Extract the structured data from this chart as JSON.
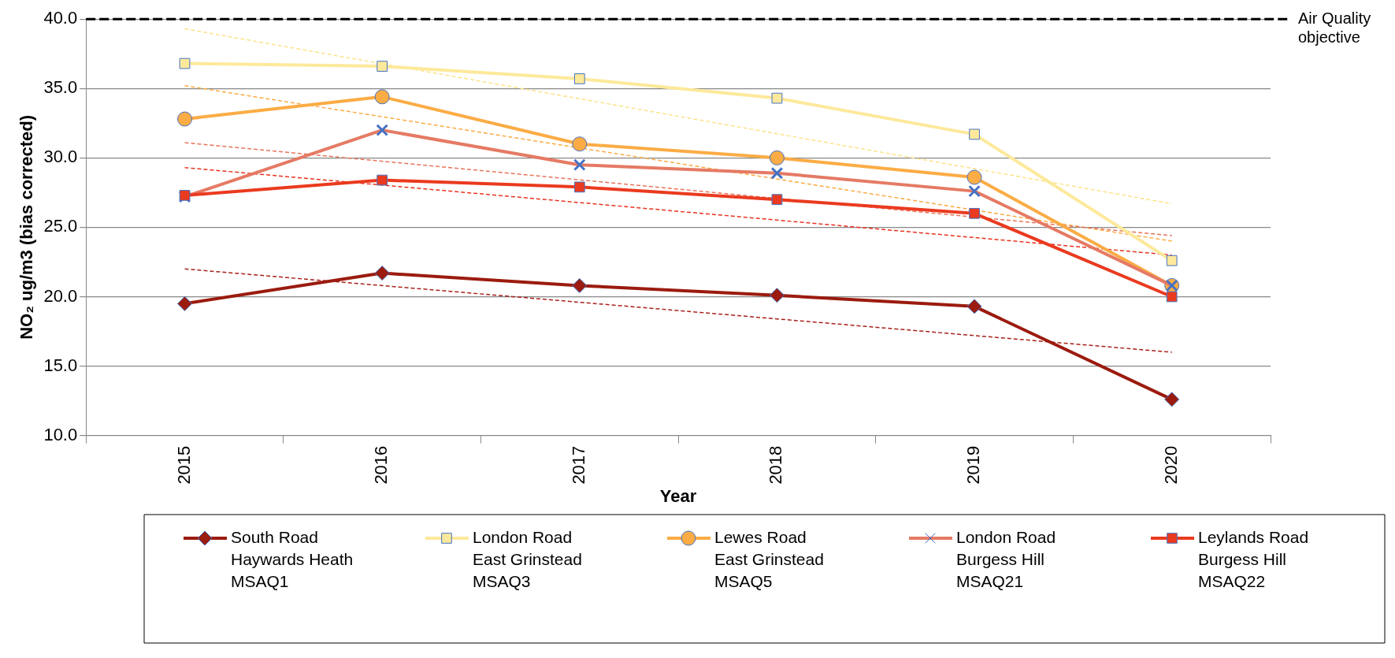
{
  "chart_data": {
    "type": "line",
    "xlabel": "Year",
    "ylabel": "NO₂ ug/m3 (bias corrected)",
    "categories": [
      "2015",
      "2016",
      "2017",
      "2018",
      "2019",
      "2020"
    ],
    "ylim": [
      10,
      40
    ],
    "yticks": [
      {
        "value": 10,
        "label": "10.0"
      },
      {
        "value": 15,
        "label": "15.0"
      },
      {
        "value": 20,
        "label": "20.0"
      },
      {
        "value": 25,
        "label": "25.0"
      },
      {
        "value": 30,
        "label": "30.0"
      },
      {
        "value": 35,
        "label": "35.0"
      },
      {
        "value": 40,
        "label": "40.0"
      }
    ],
    "grid": "y",
    "legend": "bottom",
    "ref_lines": [
      {
        "axis": "y",
        "value": 40,
        "label": "Air Quality objective",
        "color": "#000000",
        "line_style": "dashed"
      }
    ],
    "series": [
      {
        "name": "South Road\nHaywards Heath\nMSAQ1",
        "color": "#9b1b0f",
        "marker": "diamond",
        "values": [
          19.5,
          21.7,
          20.8,
          20.1,
          19.3,
          12.6
        ]
      },
      {
        "name": "London Road\nEast Grinstead\nMSAQ3",
        "color": "#fde99b",
        "marker": "square",
        "values": [
          36.8,
          36.6,
          35.7,
          34.3,
          31.7,
          22.6
        ]
      },
      {
        "name": "Lewes Road\nEast Grinstead\nMSAQ5",
        "color": "#fbac45",
        "marker": "circle",
        "values": [
          32.8,
          34.4,
          31.0,
          30.0,
          28.6,
          20.8
        ]
      },
      {
        "name": "London Road\nBurgess Hill\nMSAQ21",
        "color": "#e57a64",
        "marker": "cross",
        "values": [
          27.2,
          32.0,
          29.5,
          28.9,
          27.6,
          20.8
        ]
      },
      {
        "name": "Leylands Road\nBurgess Hill\nMSAQ22",
        "color": "#ea3a1f",
        "marker": "square",
        "values": [
          27.3,
          28.4,
          27.9,
          27.0,
          26.0,
          20.0
        ]
      },
      {
        "type": "line",
        "color": "#a8201a",
        "marker": "none",
        "line_style": "dashed",
        "values": [
          22.0,
          null,
          null,
          null,
          null,
          16.0
        ]
      },
      {
        "type": "line",
        "color": "#fde38a",
        "marker": "none",
        "line_style": "dashed",
        "values": [
          39.3,
          null,
          null,
          null,
          null,
          26.7
        ]
      },
      {
        "type": "line",
        "color": "#fbab45",
        "marker": "none",
        "line_style": "dashed",
        "values": [
          35.2,
          null,
          null,
          null,
          null,
          24.0
        ]
      },
      {
        "type": "line",
        "color": "#e8745a",
        "marker": "none",
        "line_style": "dashed",
        "values": [
          31.1,
          null,
          null,
          null,
          null,
          24.4
        ]
      },
      {
        "type": "line",
        "color": "#e8321e",
        "marker": "none",
        "line_style": "dashed",
        "values": [
          29.3,
          null,
          null,
          null,
          null,
          23.0
        ]
      }
    ]
  }
}
